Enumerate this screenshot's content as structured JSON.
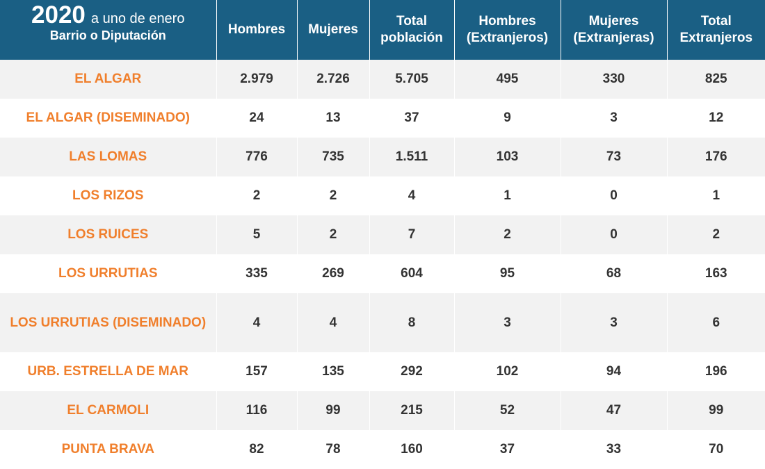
{
  "header": {
    "year": "2020",
    "date_suffix": "a uno de enero",
    "area_label": "Barrio o Diputación",
    "columns": [
      "Hombres",
      "Mujeres",
      "Total población",
      "Hombres (Extranjeros)",
      "Mujeres (Extranjeras)",
      "Total Extranjeros"
    ]
  },
  "rows": [
    {
      "name": "EL ALGAR",
      "values": [
        "2.979",
        "2.726",
        "5.705",
        "495",
        "330",
        "825"
      ]
    },
    {
      "name": "EL ALGAR (DISEMINADO)",
      "values": [
        "24",
        "13",
        "37",
        "9",
        "3",
        "12"
      ]
    },
    {
      "name": "LAS LOMAS",
      "values": [
        "776",
        "735",
        "1.511",
        "103",
        "73",
        "176"
      ]
    },
    {
      "name": "LOS RIZOS",
      "values": [
        "2",
        "2",
        "4",
        "1",
        "0",
        "1"
      ]
    },
    {
      "name": "LOS RUICES",
      "values": [
        "5",
        "2",
        "7",
        "2",
        "0",
        "2"
      ]
    },
    {
      "name": "LOS URRUTIAS",
      "values": [
        "335",
        "269",
        "604",
        "95",
        "68",
        "163"
      ]
    },
    {
      "name": "LOS URRUTIAS (DISEMINADO)",
      "values": [
        "4",
        "4",
        "8",
        "3",
        "3",
        "6"
      ]
    },
    {
      "name": "URB. ESTRELLA DE MAR",
      "values": [
        "157",
        "135",
        "292",
        "102",
        "94",
        "196"
      ]
    },
    {
      "name": "EL CARMOLI",
      "values": [
        "116",
        "99",
        "215",
        "52",
        "47",
        "99"
      ]
    },
    {
      "name": "PUNTA BRAVA",
      "values": [
        "82",
        "78",
        "160",
        "37",
        "33",
        "70"
      ]
    }
  ],
  "colors": {
    "header_bg": "#1a5f84",
    "header_text": "#ffffff",
    "name_text": "#f07f2c",
    "value_text": "#333333",
    "row_alt_bg": "#f2f2f2"
  }
}
